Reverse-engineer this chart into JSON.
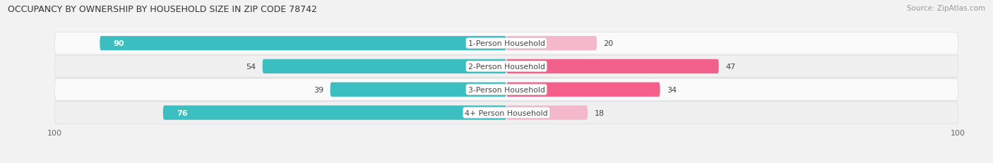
{
  "title": "OCCUPANCY BY OWNERSHIP BY HOUSEHOLD SIZE IN ZIP CODE 78742",
  "source": "Source: ZipAtlas.com",
  "categories": [
    "1-Person Household",
    "2-Person Household",
    "3-Person Household",
    "4+ Person Household"
  ],
  "owner_values": [
    90,
    54,
    39,
    76
  ],
  "renter_values": [
    20,
    47,
    34,
    18
  ],
  "owner_color": "#3bbfc0",
  "renter_colors": [
    "#f5b8cb",
    "#f0608a",
    "#f5608a",
    "#f5b8cb"
  ],
  "axis_max": 100,
  "bg_color": "#f2f2f2",
  "row_bg_light": "#ffffff",
  "row_bg_med": "#e8e8e8",
  "label_color": "#444444",
  "value_inside_color": "#ffffff",
  "value_outside_color": "#444444",
  "inside_threshold": 60,
  "legend_owner_color": "#3bbfc0",
  "legend_renter_color": "#f0608a"
}
